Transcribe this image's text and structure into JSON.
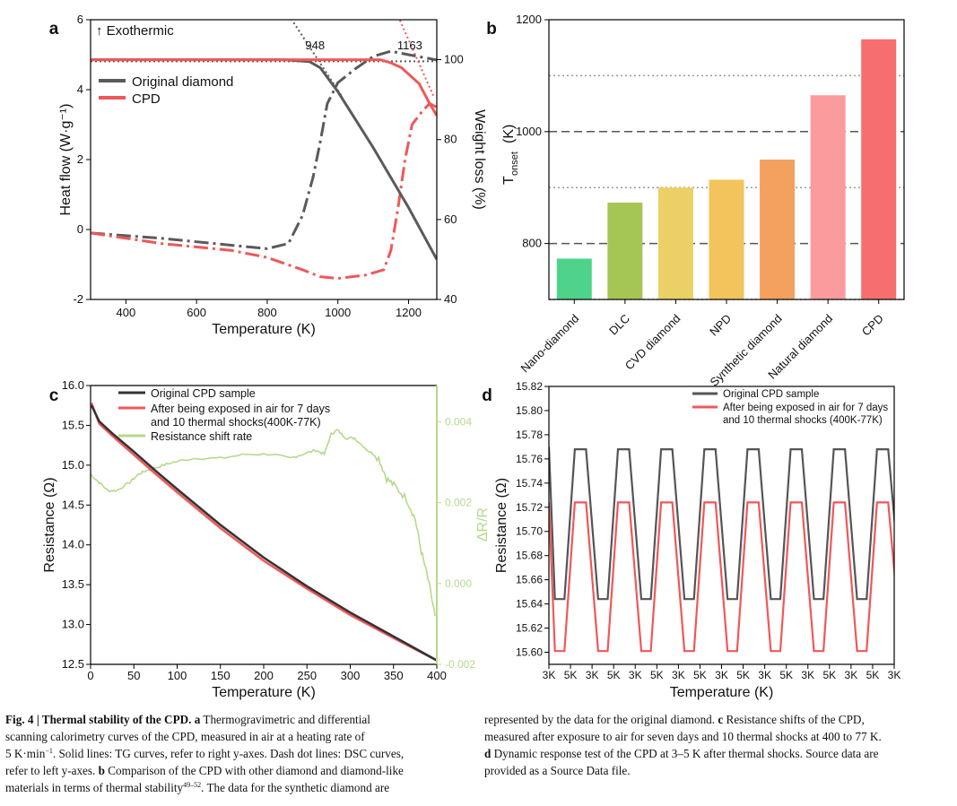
{
  "colors": {
    "gray": "#5a5a5a",
    "red": "#f0575a",
    "green": "#b6d98b",
    "bars": [
      "#4fd38b",
      "#a5c655",
      "#ebd066",
      "#f2c45b",
      "#f4a15f",
      "#fb9b9d",
      "#f66e6e"
    ],
    "grid": "#9a9a9a",
    "axis": "#000000"
  },
  "chart_data": [
    {
      "panel": "a",
      "type": "line",
      "xlabel": "Temperature (K)",
      "ylabel": "Heat flow (W·g⁻¹)",
      "ylabel_right": "Weight loss (%)",
      "xlim": [
        300,
        1280
      ],
      "ylim": [
        -2,
        6
      ],
      "ylim_right": [
        40,
        110
      ],
      "x_ticks": [
        "400",
        "600",
        "800",
        "1000",
        "1200"
      ],
      "y_ticks": [
        "-2",
        "0",
        "2",
        "4",
        "6"
      ],
      "y_right_ticks": [
        "40",
        "60",
        "80",
        "100"
      ],
      "annotation_top": "↑ Exothermic",
      "onset_labels": [
        "948",
        "1163"
      ],
      "onsets": [
        948,
        1163
      ],
      "legend": [
        "Original diamond",
        "CPD"
      ],
      "tg": [
        {
          "name": "Original diamond",
          "points": [
            [
              300,
              100
            ],
            [
              850,
              100
            ],
            [
              920,
              99.5
            ],
            [
              950,
              98
            ],
            [
              1000,
              92
            ],
            [
              1100,
              78
            ],
            [
              1200,
              63
            ],
            [
              1280,
              50
            ]
          ]
        },
        {
          "name": "CPD",
          "points": [
            [
              300,
              100
            ],
            [
              1120,
              100
            ],
            [
              1150,
              99.2
            ],
            [
              1180,
              98
            ],
            [
              1230,
              94
            ],
            [
              1260,
              89
            ],
            [
              1280,
              86
            ]
          ]
        }
      ],
      "dsc": [
        {
          "name": "Original diamond",
          "points": [
            [
              300,
              -0.1
            ],
            [
              500,
              -0.25
            ],
            [
              700,
              -0.45
            ],
            [
              800,
              -0.55
            ],
            [
              860,
              -0.4
            ],
            [
              900,
              0.4
            ],
            [
              930,
              1.5
            ],
            [
              950,
              2.5
            ],
            [
              970,
              3.6
            ],
            [
              1000,
              4.2
            ],
            [
              1050,
              4.6
            ],
            [
              1100,
              4.95
            ],
            [
              1150,
              5.1
            ],
            [
              1200,
              5.0
            ],
            [
              1280,
              4.85
            ]
          ]
        },
        {
          "name": "CPD",
          "points": [
            [
              300,
              -0.1
            ],
            [
              500,
              -0.4
            ],
            [
              700,
              -0.6
            ],
            [
              800,
              -0.8
            ],
            [
              900,
              -1.15
            ],
            [
              950,
              -1.35
            ],
            [
              1000,
              -1.4
            ],
            [
              1080,
              -1.3
            ],
            [
              1130,
              -1.15
            ],
            [
              1150,
              -0.6
            ],
            [
              1170,
              0.6
            ],
            [
              1190,
              2.0
            ],
            [
              1210,
              3.0
            ],
            [
              1240,
              3.4
            ],
            [
              1260,
              3.6
            ],
            [
              1280,
              3.5
            ]
          ]
        }
      ]
    },
    {
      "panel": "b",
      "type": "bar",
      "ylabel": "T",
      "ylabel_sub": "onset",
      "ylabel_unit": "(K)",
      "ylim": [
        700,
        1200
      ],
      "y_ticks": [
        "800",
        "1000",
        "1200"
      ],
      "dotted_grid": [
        700,
        900,
        1100
      ],
      "dashed_grid": [
        800,
        1000
      ],
      "categories": [
        "Nano-diamond",
        "DLC",
        "CVD diamond",
        "NPD",
        "Synthetic diamond",
        "Natural diamond",
        "CPD"
      ],
      "values": [
        773,
        873,
        900,
        914,
        950,
        1065,
        1165
      ]
    },
    {
      "panel": "c",
      "type": "line",
      "xlabel": "Temperature (K)",
      "ylabel": "Resistance (Ω)",
      "ylabel_right": "ΔR/R",
      "xlim": [
        0,
        400
      ],
      "ylim": [
        12.5,
        16.0
      ],
      "ylim_right": [
        -0.002,
        0.0049
      ],
      "x_ticks": [
        "0",
        "50",
        "100",
        "150",
        "200",
        "250",
        "300",
        "350",
        "400"
      ],
      "y_ticks": [
        "12.5",
        "13.0",
        "13.5",
        "14.0",
        "14.5",
        "15.0",
        "15.5",
        "16.0"
      ],
      "y_right_ticks": [
        "-0.002",
        "0.000",
        "0.002",
        "0.004"
      ],
      "legend": [
        "Original CPD sample",
        "After being exposed in air for 7 days",
        "and 10 thermal shocks(400K-77K)",
        "Resistance shift rate"
      ],
      "series": [
        {
          "name": "Original CPD sample",
          "points": [
            [
              1,
              15.75
            ],
            [
              10,
              15.55
            ],
            [
              25,
              15.4
            ],
            [
              50,
              15.17
            ],
            [
              75,
              14.93
            ],
            [
              100,
              14.7
            ],
            [
              150,
              14.25
            ],
            [
              200,
              13.84
            ],
            [
              250,
              13.48
            ],
            [
              300,
              13.15
            ],
            [
              350,
              12.85
            ],
            [
              400,
              12.55
            ]
          ]
        },
        {
          "name": "After being exposed in air for 7 days and 10 thermal shocks(400K-77K)",
          "points": [
            [
              1,
              15.78
            ],
            [
              10,
              15.52
            ],
            [
              25,
              15.37
            ],
            [
              50,
              15.13
            ],
            [
              75,
              14.89
            ],
            [
              100,
              14.66
            ],
            [
              150,
              14.21
            ],
            [
              200,
              13.8
            ],
            [
              250,
              13.45
            ],
            [
              300,
              13.12
            ],
            [
              350,
              12.83
            ],
            [
              400,
              12.55
            ]
          ]
        },
        {
          "name": "Resistance shift rate",
          "axis": "right",
          "points": [
            [
              0,
              0.0027
            ],
            [
              10,
              0.0025
            ],
            [
              20,
              0.0023
            ],
            [
              30,
              0.0023
            ],
            [
              45,
              0.0025
            ],
            [
              55,
              0.0027
            ],
            [
              65,
              0.0028
            ],
            [
              80,
              0.0029
            ],
            [
              95,
              0.003
            ],
            [
              120,
              0.0031
            ],
            [
              150,
              0.0031
            ],
            [
              180,
              0.0032
            ],
            [
              210,
              0.0032
            ],
            [
              230,
              0.0031
            ],
            [
              245,
              0.0032
            ],
            [
              260,
              0.0033
            ],
            [
              270,
              0.0032
            ],
            [
              278,
              0.0037
            ],
            [
              285,
              0.0038
            ],
            [
              295,
              0.0036
            ],
            [
              305,
              0.0036
            ],
            [
              320,
              0.0033
            ],
            [
              333,
              0.0031
            ],
            [
              342,
              0.0026
            ],
            [
              352,
              0.0024
            ],
            [
              365,
              0.0021
            ],
            [
              375,
              0.0016
            ],
            [
              382,
              0.0008
            ],
            [
              390,
              0.0001
            ],
            [
              398,
              -0.0008
            ]
          ]
        }
      ]
    },
    {
      "panel": "d",
      "type": "line",
      "xlabel": "Temperature (K)",
      "ylabel": "Resistance (Ω)",
      "ylim": [
        15.59,
        15.82
      ],
      "y_ticks": [
        "15.60",
        "15.62",
        "15.64",
        "15.66",
        "15.68",
        "15.70",
        "15.72",
        "15.74",
        "15.76",
        "15.78",
        "15.80",
        "15.82"
      ],
      "x_ticks": [
        "3K",
        "5K",
        "3K",
        "5K",
        "3K",
        "5K",
        "3K",
        "5K",
        "3K",
        "5K",
        "3K",
        "5K",
        "3K",
        "5K",
        "3K",
        "5K",
        "3K"
      ],
      "legend": [
        "Original CPD sample",
        "After being exposed in air for 7 days",
        "and 10 thermal shocks (400K-77K)"
      ],
      "cycles": 8,
      "series": [
        {
          "name": "Original CPD sample",
          "high": 15.768,
          "low": 15.644,
          "start": 15.77
        },
        {
          "name": "After being exposed in air for 7 days and 10 thermal shocks (400K-77K)",
          "high": 15.724,
          "low": 15.601,
          "start": 15.724
        }
      ]
    }
  ],
  "panel_labels": [
    "a",
    "b",
    "c",
    "d"
  ],
  "caption": {
    "fig": "Fig. 4",
    "bar": "|",
    "title": "Thermal stability of the CPD.",
    "a_label": "a",
    "a_line1": "Thermogravimetric and differential",
    "a_line2": "scanning calorimetry curves of the CPD, measured in air at a heating rate of",
    "a_line3_rate": "5 K·min",
    "a_line3_exp": "−1",
    "a_line3_rest": ". Solid lines: TG curves, refer to right y-axes. Dash dot lines: DSC curves,",
    "a_line4": "refer to left y-axes.",
    "b_label": "b",
    "b_line4": "Comparison of the CPD with other diamond and diamond-like",
    "b_line5": "materials in terms of thermal stability",
    "b_ref": "49–52",
    "b_line5_rest": ". The data for the synthetic diamond are",
    "r_line1": "represented by the data for the original diamond.",
    "c_label": "c",
    "c_line1": "Resistance shifts of the CPD,",
    "c_line2": "measured after exposure to air for seven days and 10 thermal shocks at 400 to 77 K.",
    "d_label": "d",
    "d_line3": "Dynamic response test of the CPD at 3–5 K after thermal shocks. Source data are",
    "d_line4": "provided as a Source Data file."
  }
}
